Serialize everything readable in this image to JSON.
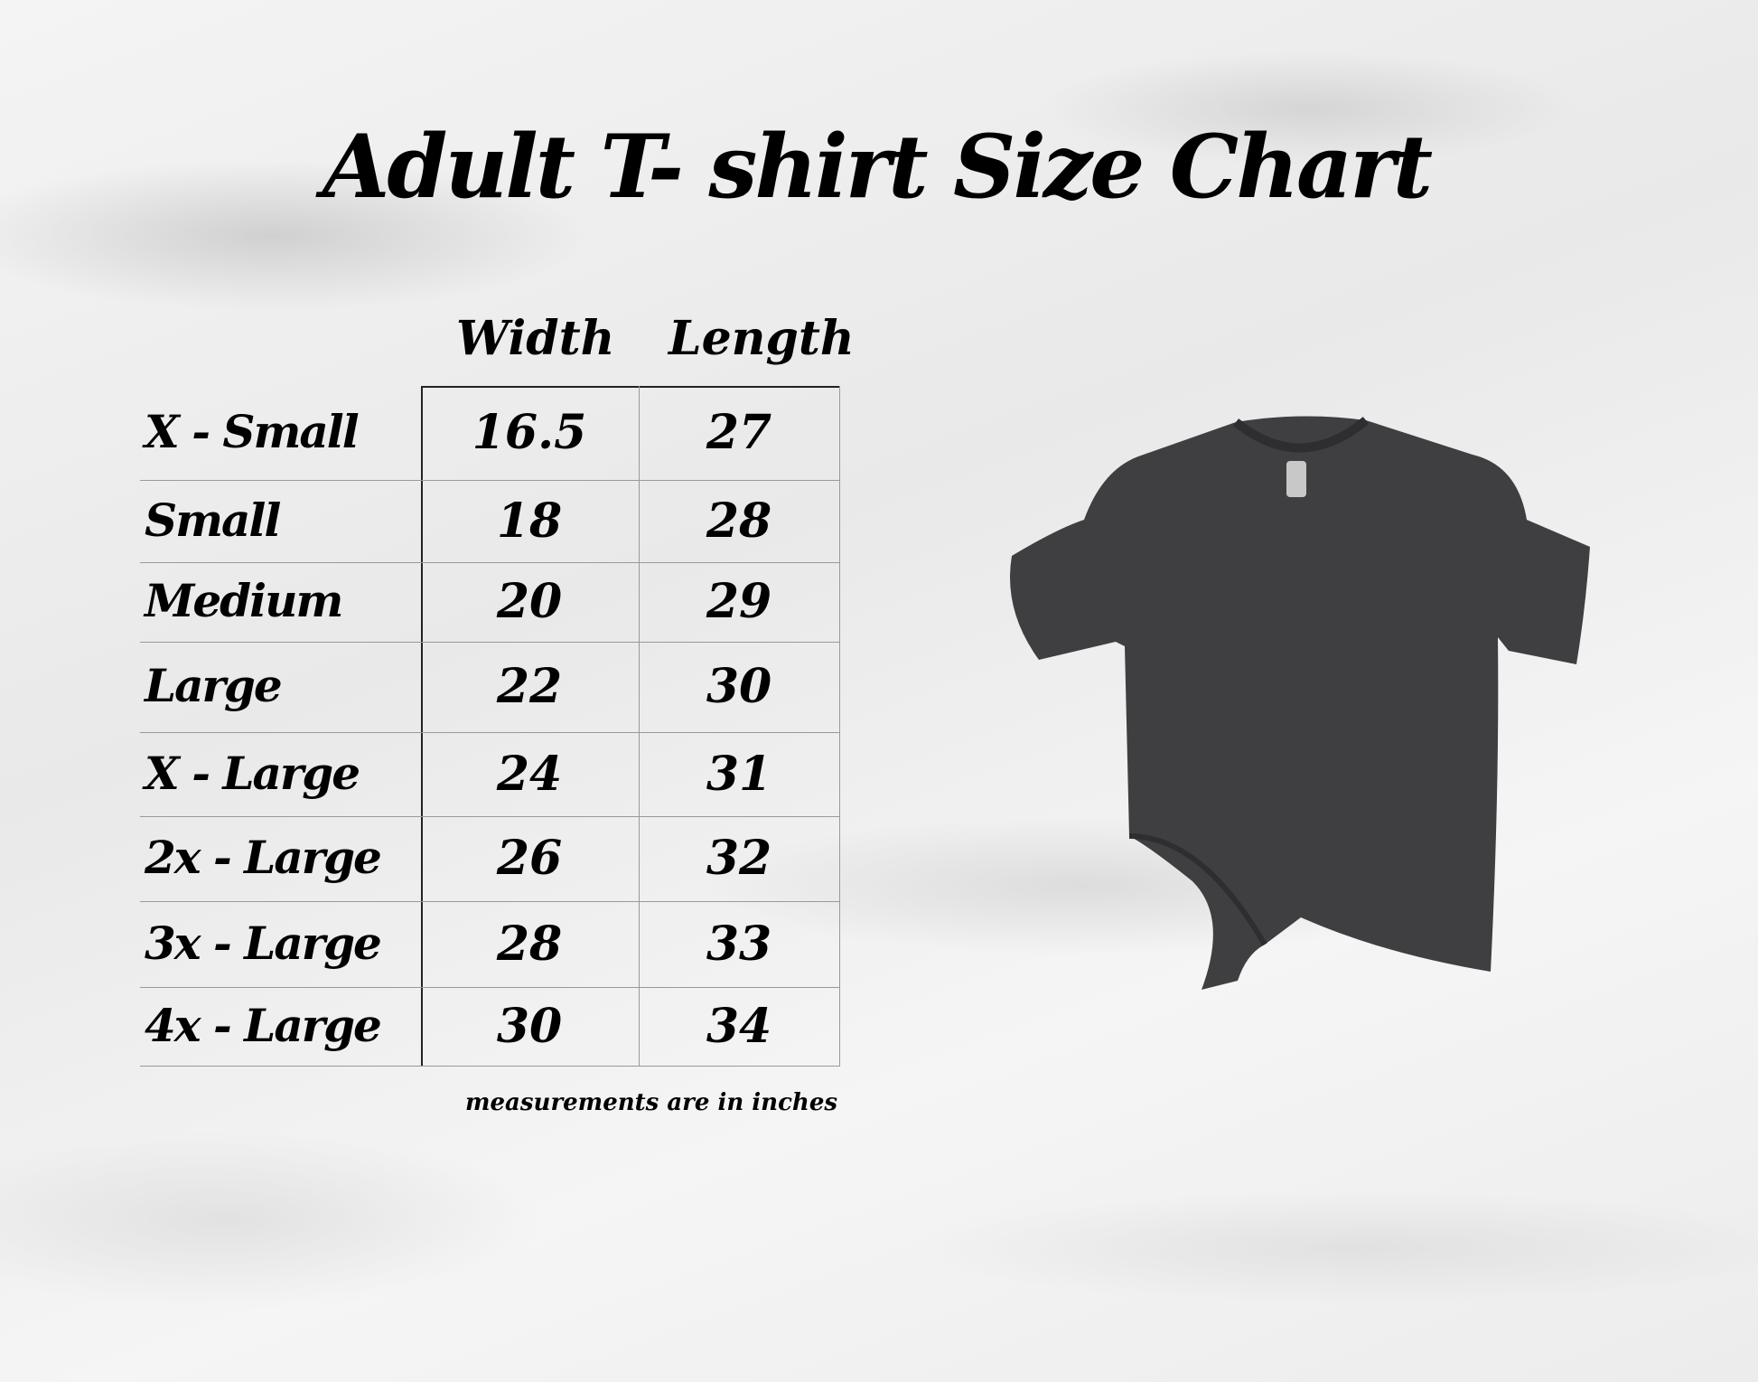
{
  "title": "Adult T- shirt Size Chart",
  "columns": [
    "Width",
    "Length"
  ],
  "rows": [
    {
      "size": "X - Small",
      "width": "16.5",
      "length": "27"
    },
    {
      "size": "Small",
      "width": "18",
      "length": "28"
    },
    {
      "size": "Medium",
      "width": "20",
      "length": "29"
    },
    {
      "size": "Large",
      "width": "22",
      "length": "30"
    },
    {
      "size": "X - Large",
      "width": "24",
      "length": "31"
    },
    {
      "size": "2x - Large",
      "width": "26",
      "length": "32"
    },
    {
      "size": "3x - Large",
      "width": "28",
      "length": "33"
    },
    {
      "size": "4x - Large",
      "width": "30",
      "length": "34"
    }
  ],
  "note": "measurements are in inches",
  "shirt_color": "#3f3f41"
}
